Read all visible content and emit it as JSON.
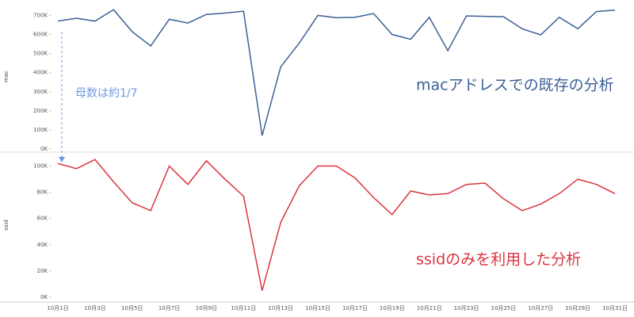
{
  "chart_data": [
    {
      "type": "line",
      "ylabel": "mac",
      "color": "#3c6097",
      "values": [
        670000,
        685000,
        670000,
        730000,
        615000,
        540000,
        680000,
        660000,
        705000,
        712000,
        722000,
        70000,
        430000,
        555000,
        700000,
        688000,
        690000,
        710000,
        600000,
        575000,
        690000,
        515000,
        697000,
        695000,
        693000,
        630000,
        598000,
        690000,
        630000,
        720000,
        728000
      ],
      "ylim": [
        0,
        760000
      ],
      "yticks": [
        {
          "value": 0,
          "label": "0K"
        },
        {
          "value": 100000,
          "label": "100K"
        },
        {
          "value": 200000,
          "label": "200K"
        },
        {
          "value": 300000,
          "label": "300K"
        },
        {
          "value": 400000,
          "label": "400K"
        },
        {
          "value": 500000,
          "label": "500K"
        },
        {
          "value": 600000,
          "label": "600K"
        },
        {
          "value": 700000,
          "label": "700K"
        }
      ],
      "annotations": [
        "macアドレスでの既存の分析",
        "母数は約1/7"
      ]
    },
    {
      "type": "line",
      "ylabel": "ssid",
      "color": "#d8353d",
      "categories": [
        "10月1日",
        null,
        "10月3日",
        null,
        "10月5日",
        null,
        "10月7日",
        null,
        "10月9日",
        null,
        "10月11日",
        null,
        "10月13日",
        null,
        "10月15日",
        null,
        "10月17日",
        null,
        "10月19日",
        null,
        "10月21日",
        null,
        "10月23日",
        null,
        "10月25日",
        null,
        "10月27日",
        null,
        "10月29日",
        null,
        "10月31日"
      ],
      "values": [
        102000,
        98000,
        105000,
        88000,
        72000,
        66000,
        100000,
        86000,
        104000,
        90000,
        77000,
        5000,
        57000,
        85000,
        100000,
        100000,
        91000,
        76000,
        63000,
        81000,
        78000,
        79000,
        86000,
        87000,
        75000,
        66000,
        71000,
        79000,
        90000,
        86000,
        79000
      ],
      "ylim": [
        0,
        110000
      ],
      "yticks": [
        {
          "value": 0,
          "label": "0K"
        },
        {
          "value": 20000,
          "label": "20K"
        },
        {
          "value": 40000,
          "label": "40K"
        },
        {
          "value": 60000,
          "label": "60K"
        },
        {
          "value": 80000,
          "label": "80K"
        },
        {
          "value": 100000,
          "label": "100K"
        }
      ],
      "annotations": [
        "ssidのみを利用した分析"
      ]
    }
  ]
}
